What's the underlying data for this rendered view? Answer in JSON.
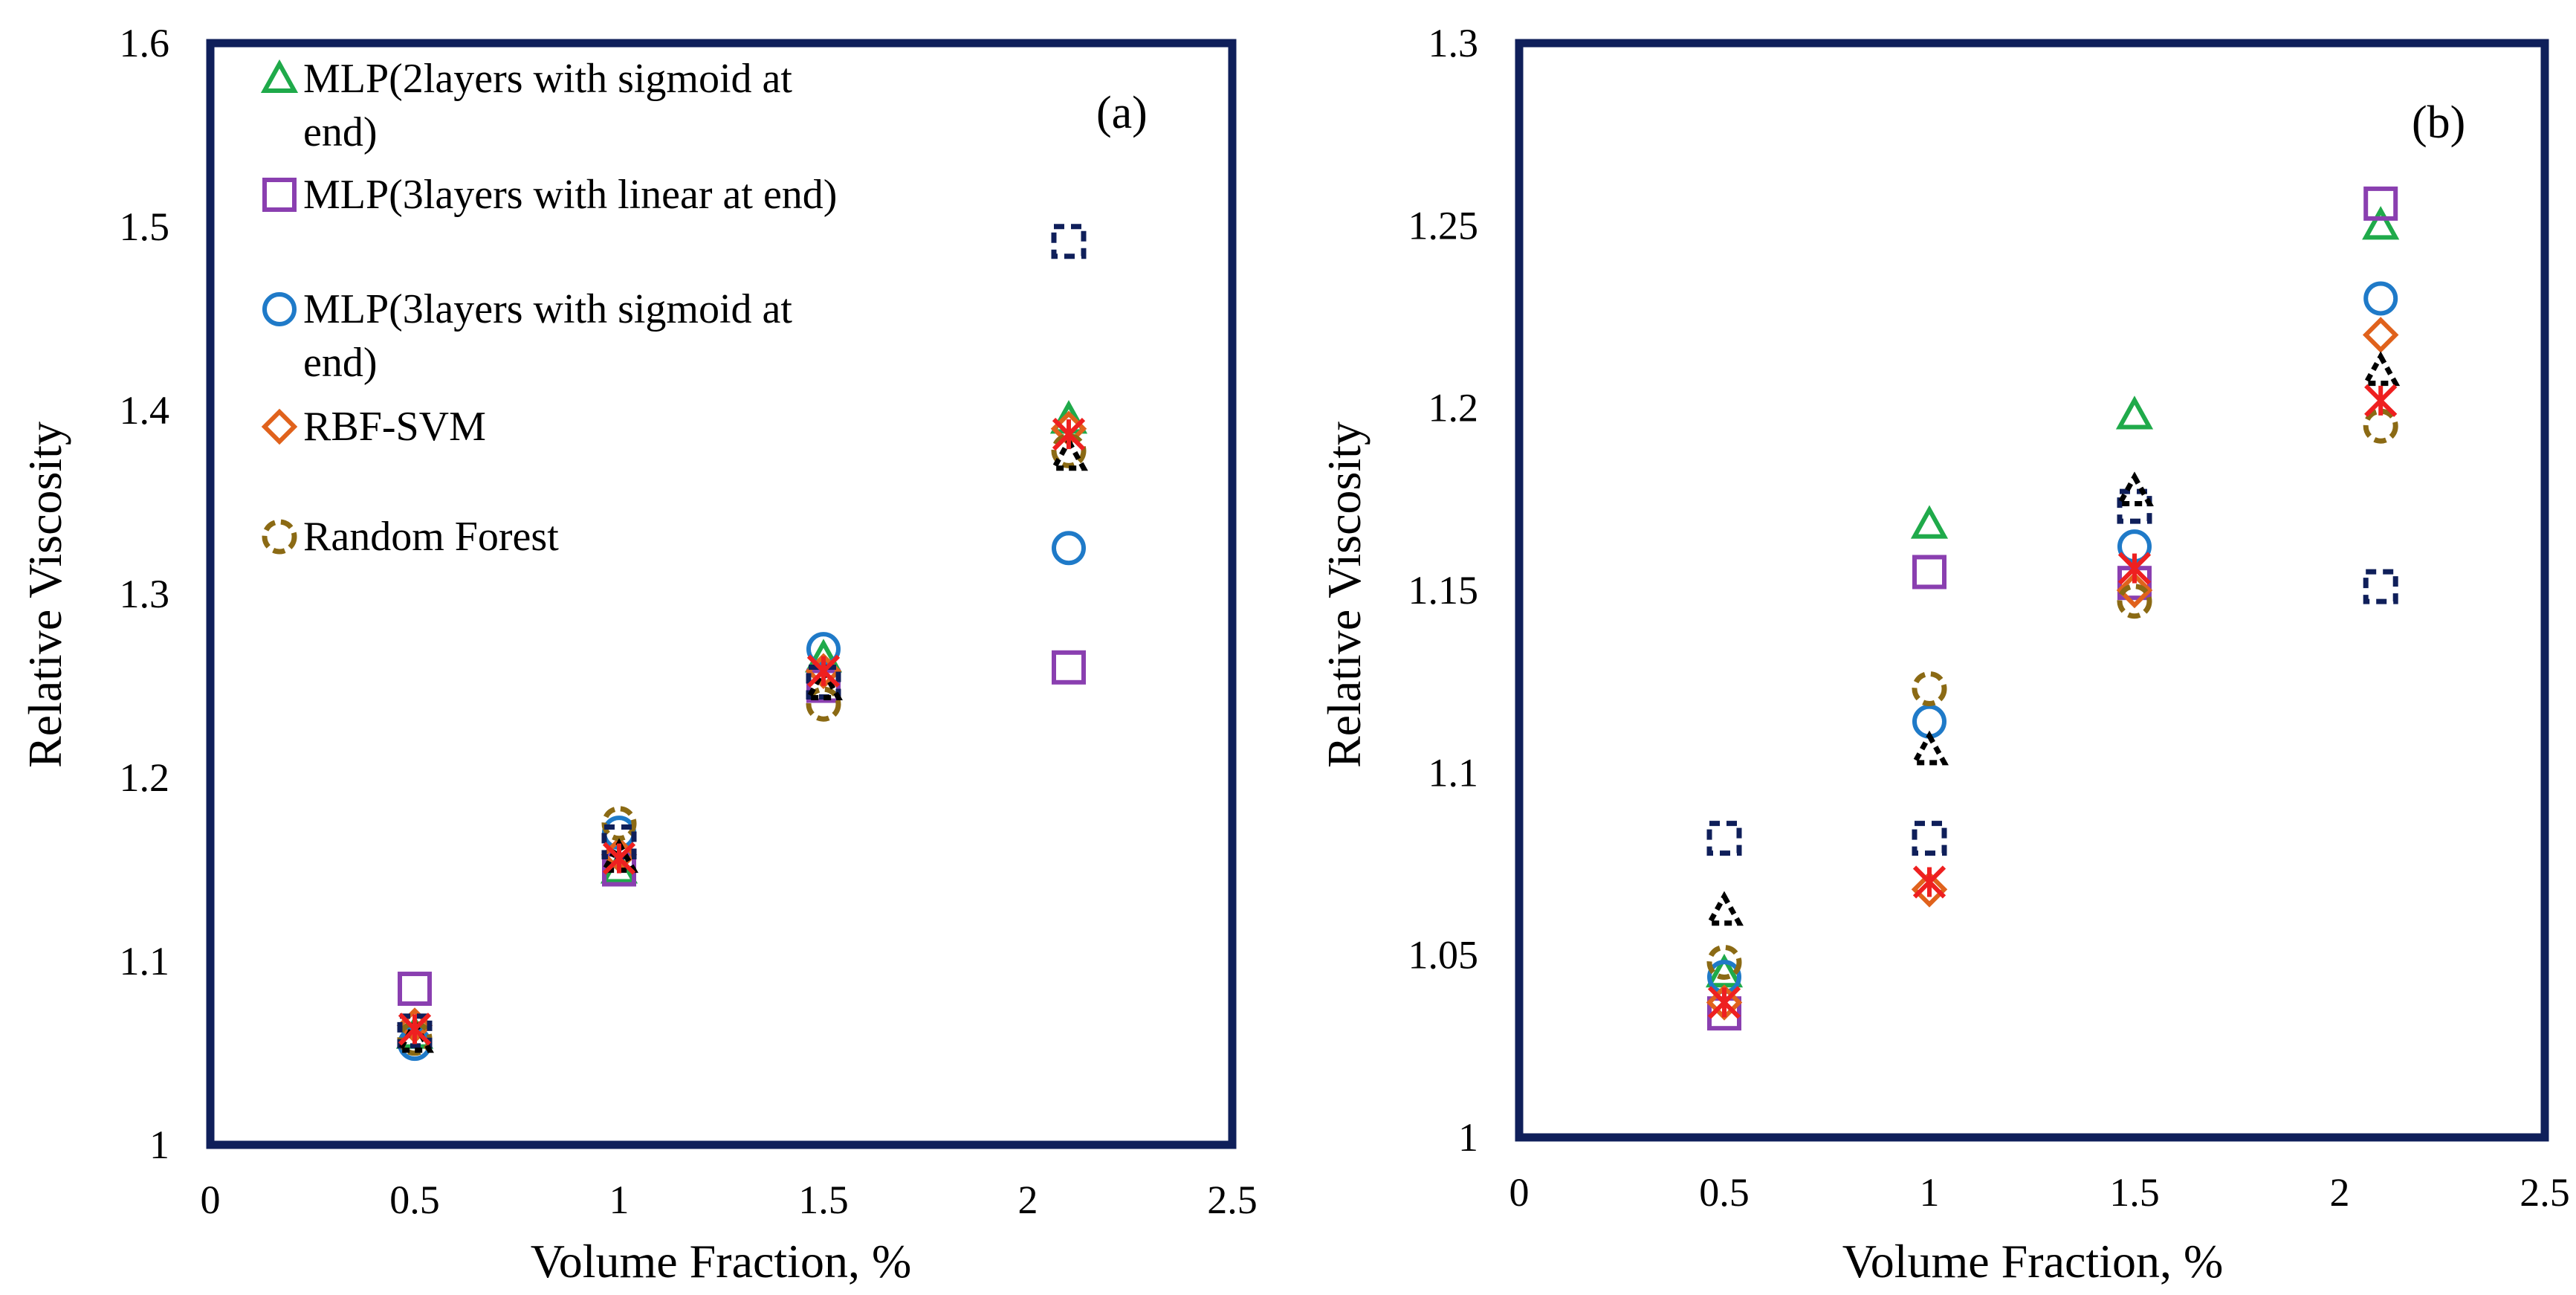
{
  "chart_data": [
    {
      "type": "scatter",
      "panel_label": "(a)",
      "xlabel": "Volume Fraction, %",
      "ylabel": "Relative Viscosity",
      "xlim": [
        0,
        2.5
      ],
      "ylim": [
        1,
        1.6
      ],
      "xticks": [
        "0",
        "0.5",
        "1",
        "1.5",
        "2",
        "2.5"
      ],
      "yticks": [
        "1",
        "1.1",
        "1.2",
        "1.3",
        "1.4",
        "1.5",
        "1.6"
      ],
      "legend_position": "top-left",
      "legend": [
        {
          "name": "MLP(2layers with sigmoid at end)",
          "lines": [
            "MLP(2layers with sigmoid at",
            "end)"
          ],
          "marker": "triangle",
          "color": "#1faa4a"
        },
        {
          "name": "MLP(3layers with linear at end)",
          "lines": [
            "MLP(3layers with linear at end)"
          ],
          "marker": "square",
          "color": "#8a3fb0"
        },
        {
          "name": "MLP(3layers with sigmoid at end)",
          "lines": [
            "MLP(3layers with sigmoid at",
            "end)"
          ],
          "marker": "circle",
          "color": "#1f7ac8"
        },
        {
          "name": "RBF-SVM",
          "lines": [
            "RBF-SVM"
          ],
          "marker": "diamond",
          "color": "#e0621c"
        },
        {
          "name": "Random Forest",
          "lines": [
            "Random Forest"
          ],
          "marker": "dashed-circle",
          "color": "#8b6a14"
        }
      ],
      "series": [
        {
          "name": "MLP(2layers with sigmoid at end)",
          "marker": "triangle",
          "color": "#1faa4a",
          "points": [
            [
              0.5,
              1.06
            ],
            [
              1.0,
              1.15
            ],
            [
              1.5,
              1.265
            ],
            [
              2.1,
              1.395
            ]
          ]
        },
        {
          "name": "MLP(3layers with linear at end)",
          "marker": "square",
          "color": "#8a3fb0",
          "points": [
            [
              0.5,
              1.085
            ],
            [
              1.0,
              1.15
            ],
            [
              1.5,
              1.25
            ],
            [
              2.1,
              1.26
            ]
          ]
        },
        {
          "name": "MLP(3layers with sigmoid at end)",
          "marker": "circle",
          "color": "#1f7ac8",
          "points": [
            [
              0.5,
              1.055
            ],
            [
              1.0,
              1.17
            ],
            [
              1.5,
              1.27
            ],
            [
              2.1,
              1.325
            ]
          ]
        },
        {
          "name": "RBF-SVM",
          "marker": "diamond",
          "color": "#e0621c",
          "points": [
            [
              0.5,
              1.065
            ],
            [
              1.0,
              1.158
            ],
            [
              1.5,
              1.258
            ],
            [
              2.1,
              1.39
            ]
          ]
        },
        {
          "name": "Random Forest",
          "marker": "dashed-circle",
          "color": "#8b6a14",
          "points": [
            [
              0.5,
              1.058
            ],
            [
              1.0,
              1.175
            ],
            [
              1.5,
              1.24
            ],
            [
              2.1,
              1.378
            ]
          ]
        },
        {
          "name": "Unlabeled (dashed square)",
          "marker": "dashed-square",
          "color": "#0f1f5a",
          "points": [
            [
              0.5,
              1.062
            ],
            [
              1.0,
              1.165
            ],
            [
              1.5,
              1.252
            ],
            [
              2.1,
              1.492
            ]
          ]
        },
        {
          "name": "Unlabeled (dashed triangle)",
          "marker": "dashed-triangle",
          "color": "#000000",
          "points": [
            [
              0.5,
              1.058
            ],
            [
              1.0,
              1.156
            ],
            [
              1.5,
              1.25
            ],
            [
              2.1,
              1.375
            ]
          ]
        },
        {
          "name": "Unlabeled (asterisk)",
          "marker": "asterisk",
          "color": "#ee2020",
          "points": [
            [
              0.5,
              1.063
            ],
            [
              1.0,
              1.156
            ],
            [
              1.5,
              1.258
            ],
            [
              2.1,
              1.387
            ]
          ]
        }
      ]
    },
    {
      "type": "scatter",
      "panel_label": "(b)",
      "xlabel": "Volume Fraction, %",
      "ylabel": "Relative Viscosity",
      "xlim": [
        0,
        2.5
      ],
      "ylim": [
        1,
        1.3
      ],
      "xticks": [
        "0",
        "0.5",
        "1",
        "1.5",
        "2",
        "2.5"
      ],
      "yticks": [
        "1",
        "1.05",
        "1.1",
        "1.15",
        "1.2",
        "1.25",
        "1.3"
      ],
      "legend": [],
      "series": [
        {
          "name": "MLP(2layers with sigmoid at end)",
          "marker": "triangle",
          "color": "#1faa4a",
          "points": [
            [
              0.5,
              1.045
            ],
            [
              1.0,
              1.168
            ],
            [
              1.5,
              1.198
            ],
            [
              2.1,
              1.25
            ]
          ]
        },
        {
          "name": "MLP(3layers with linear at end)",
          "marker": "square",
          "color": "#8a3fb0",
          "points": [
            [
              0.5,
              1.034
            ],
            [
              1.0,
              1.155
            ],
            [
              1.5,
              1.152
            ],
            [
              2.1,
              1.256
            ]
          ]
        },
        {
          "name": "MLP(3layers with sigmoid at end)",
          "marker": "circle",
          "color": "#1f7ac8",
          "points": [
            [
              0.5,
              1.044
            ],
            [
              1.0,
              1.114
            ],
            [
              1.5,
              1.162
            ],
            [
              2.1,
              1.23
            ]
          ]
        },
        {
          "name": "RBF-SVM",
          "marker": "diamond",
          "color": "#e0621c",
          "points": [
            [
              0.5,
              1.037
            ],
            [
              1.0,
              1.068
            ],
            [
              1.5,
              1.15
            ],
            [
              2.1,
              1.22
            ]
          ]
        },
        {
          "name": "Random Forest",
          "marker": "dashed-circle",
          "color": "#8b6a14",
          "points": [
            [
              0.5,
              1.048
            ],
            [
              1.0,
              1.123
            ],
            [
              1.5,
              1.147
            ],
            [
              2.1,
              1.195
            ]
          ]
        },
        {
          "name": "Unlabeled (dashed square)",
          "marker": "dashed-square",
          "color": "#0f1f5a",
          "points": [
            [
              0.5,
              1.082
            ],
            [
              1.0,
              1.082
            ],
            [
              1.5,
              1.173
            ],
            [
              2.1,
              1.151
            ]
          ]
        },
        {
          "name": "Unlabeled (dashed triangle)",
          "marker": "dashed-triangle",
          "color": "#000000",
          "points": [
            [
              0.5,
              1.062
            ],
            [
              1.0,
              1.106
            ],
            [
              1.5,
              1.177
            ],
            [
              2.1,
              1.21
            ]
          ]
        },
        {
          "name": "Unlabeled (asterisk)",
          "marker": "asterisk",
          "color": "#ee2020",
          "points": [
            [
              0.5,
              1.037
            ],
            [
              1.0,
              1.07
            ],
            [
              1.5,
              1.156
            ],
            [
              2.1,
              1.202
            ]
          ]
        }
      ]
    }
  ]
}
